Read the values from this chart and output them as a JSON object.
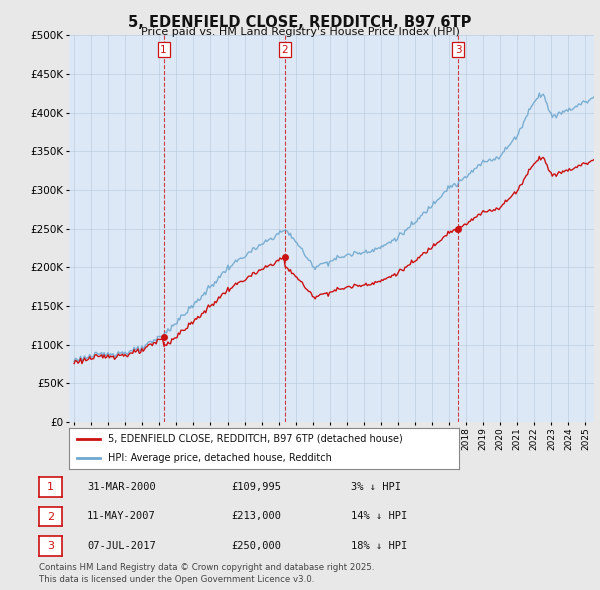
{
  "title": "5, EDENFIELD CLOSE, REDDITCH, B97 6TP",
  "subtitle": "Price paid vs. HM Land Registry's House Price Index (HPI)",
  "ylim": [
    0,
    500000
  ],
  "yticks": [
    0,
    50000,
    100000,
    150000,
    200000,
    250000,
    300000,
    350000,
    400000,
    450000,
    500000
  ],
  "ytick_labels": [
    "£0",
    "£50K",
    "£100K",
    "£150K",
    "£200K",
    "£250K",
    "£300K",
    "£350K",
    "£400K",
    "£450K",
    "£500K"
  ],
  "xmin": 1994.7,
  "xmax": 2025.5,
  "background_color": "#e8e8e8",
  "plot_bg_color": "#dce8f5",
  "grid_color": "#b0c4d8",
  "hpi_color": "#6fa8d0",
  "price_color": "#cc1111",
  "sale_vline_color": "#cc1111",
  "transactions": [
    {
      "num": 1,
      "date_label": "31-MAR-2000",
      "price": 109995,
      "x_year": 2000.25
    },
    {
      "num": 2,
      "date_label": "11-MAY-2007",
      "price": 213000,
      "x_year": 2007.37
    },
    {
      "num": 3,
      "date_label": "07-JUL-2017",
      "price": 250000,
      "x_year": 2017.52
    }
  ],
  "legend_line1": "5, EDENFIELD CLOSE, REDDITCH, B97 6TP (detached house)",
  "legend_line2": "HPI: Average price, detached house, Redditch",
  "table_rows": [
    {
      "num": 1,
      "date": "31-MAR-2000",
      "price": "£109,995",
      "pct": "3% ↓ HPI"
    },
    {
      "num": 2,
      "date": "11-MAY-2007",
      "price": "£213,000",
      "pct": "14% ↓ HPI"
    },
    {
      "num": 3,
      "date": "07-JUL-2017",
      "price": "£250,000",
      "pct": "18% ↓ HPI"
    }
  ],
  "footnote1": "Contains HM Land Registry data © Crown copyright and database right 2025.",
  "footnote2": "This data is licensed under the Open Government Licence v3.0."
}
